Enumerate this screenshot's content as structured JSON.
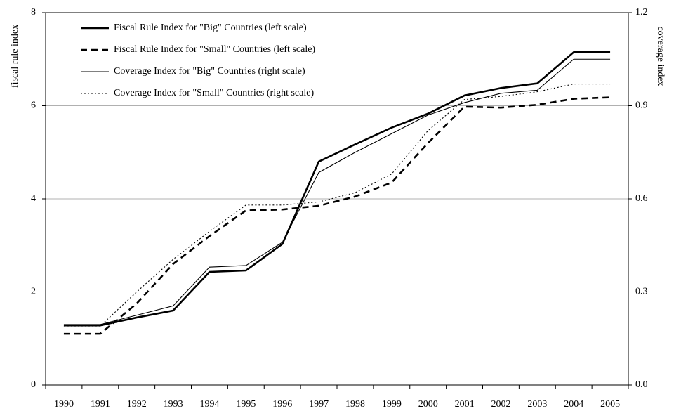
{
  "chart_data": {
    "type": "line",
    "y_label": "fiscal rule index",
    "y2_label": "coverage index",
    "categories": [
      "1990",
      "1991",
      "1992",
      "1993",
      "1994",
      "1995",
      "1996",
      "1997",
      "1998",
      "1999",
      "2000",
      "2001",
      "2002",
      "2003",
      "2004",
      "2005"
    ],
    "series": [
      {
        "name": "Fiscal Rule Index for \"Big\" Countries (left scale)",
        "color": "#000000",
        "dash": "solid",
        "bold": true,
        "values": [
          1.28,
          1.28,
          1.45,
          1.6,
          2.43,
          2.46,
          3.03,
          4.8,
          5.17,
          5.53,
          5.83,
          6.22,
          6.38,
          6.48,
          7.15,
          7.15
        ]
      },
      {
        "name": "Fiscal Rule Index for \"Small\" Countries (left scale)",
        "color": "#000000",
        "dash": "dashed",
        "bold": true,
        "values": [
          1.1,
          1.1,
          1.75,
          2.6,
          3.2,
          3.75,
          3.77,
          3.85,
          4.05,
          4.35,
          5.2,
          5.98,
          5.96,
          6.02,
          6.15,
          6.18
        ]
      },
      {
        "name": "Coverage Index for \"Big\" Countries (right scale)",
        "color": "#000000",
        "dash": "solid",
        "bold": false,
        "axis": "y2",
        "values": [
          0.195,
          0.195,
          0.225,
          0.255,
          0.38,
          0.385,
          0.46,
          0.685,
          0.75,
          0.81,
          0.87,
          0.91,
          0.94,
          0.95,
          1.05,
          1.05
        ]
      },
      {
        "name": "Coverage Index for \"Small\" Countries (right scale)",
        "color": "#000000",
        "dash": "dotted",
        "bold": false,
        "axis": "y2",
        "values": [
          0.19,
          0.19,
          0.3,
          0.405,
          0.495,
          0.58,
          0.58,
          0.59,
          0.62,
          0.68,
          0.82,
          0.92,
          0.93,
          0.945,
          0.97,
          0.97
        ]
      }
    ],
    "ylim": [
      0,
      8
    ],
    "yticks": [
      0,
      2,
      4,
      6,
      8
    ],
    "y2lim": [
      0,
      1.2
    ],
    "y2ticks": [
      {
        "value": 0,
        "label": "0.0"
      },
      0.3,
      0.6,
      0.9,
      1.2
    ],
    "grid": true,
    "legend": "upper left"
  }
}
